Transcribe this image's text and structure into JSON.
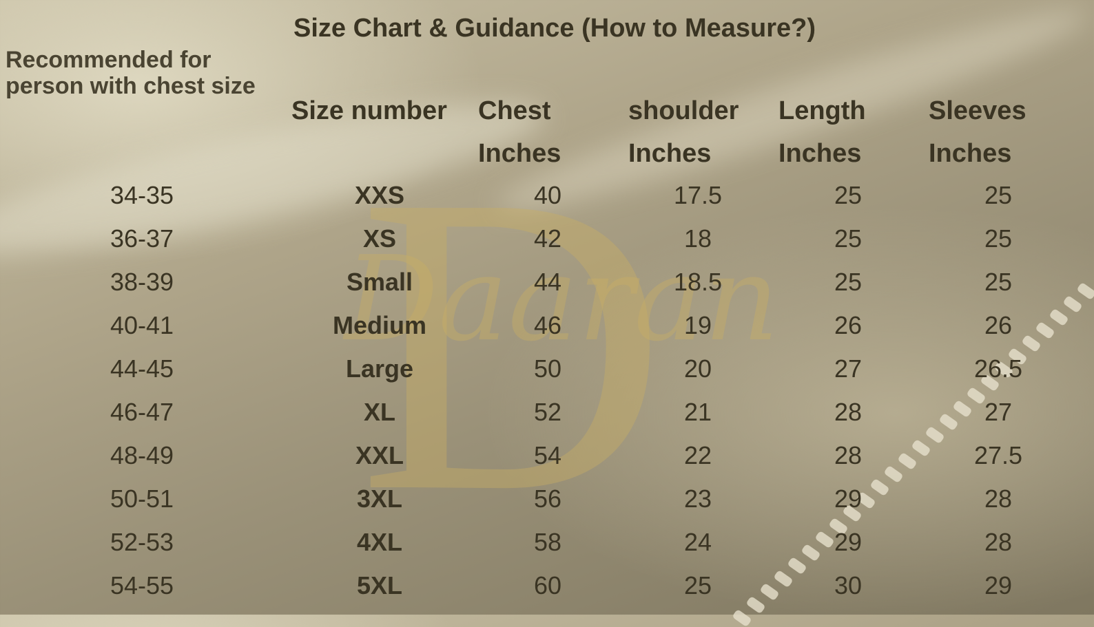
{
  "title": "Size Chart & Guidance (How to Measure?)",
  "watermark": {
    "letter": "D",
    "brand": "Daaran"
  },
  "headers": {
    "recommended": "Recommended for person with chest size",
    "size": "Size number",
    "chest": [
      "Chest",
      "Inches"
    ],
    "shoulder": [
      "shoulder",
      "Inches"
    ],
    "length": [
      "Length",
      "Inches"
    ],
    "sleeves": [
      "Sleeves",
      "Inches"
    ]
  },
  "rows": [
    [
      "34-35",
      "XXS",
      "40",
      "17.5",
      "25",
      "25"
    ],
    [
      "36-37",
      "XS",
      "42",
      "18",
      "25",
      "25"
    ],
    [
      "38-39",
      "Small",
      "44",
      "18.5",
      "25",
      "25"
    ],
    [
      "40-41",
      "Medium",
      "46",
      "19",
      "26",
      "26"
    ],
    [
      "44-45",
      "Large",
      "50",
      "20",
      "27",
      "26.5"
    ],
    [
      "46-47",
      "XL",
      "52",
      "21",
      "28",
      "27"
    ],
    [
      "48-49",
      "XXL",
      "54",
      "22",
      "28",
      "27.5"
    ],
    [
      "50-51",
      "3XL",
      "56",
      "23",
      "29",
      "28"
    ],
    [
      "52-53",
      "4XL",
      "58",
      "24",
      "29",
      "28"
    ],
    [
      "54-55",
      "5XL",
      "60",
      "25",
      "30",
      "29"
    ]
  ]
}
